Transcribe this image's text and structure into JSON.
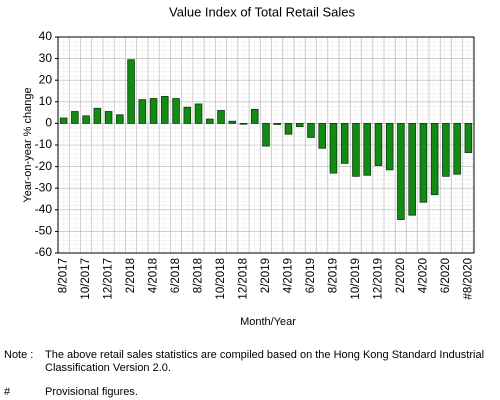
{
  "chart_data": {
    "type": "bar",
    "title": "Value Index of Total Retail Sales",
    "x_label": "Month/Year",
    "y_label": "Year-on-year % change",
    "categories": [
      "8/2017",
      null,
      "10/2017",
      null,
      "12/2017",
      null,
      "2/2018",
      null,
      "4/2018",
      null,
      "6/2018",
      null,
      "8/2018",
      null,
      "10/2018",
      null,
      "12/2018",
      null,
      "2/2019",
      null,
      "4/2019",
      null,
      "6/2019",
      null,
      "8/2019",
      null,
      "10/2019",
      null,
      "12/2019",
      null,
      "2/2020",
      null,
      "4/2020",
      null,
      "6/2020",
      null,
      "#8/2020"
    ],
    "values": [
      2.5,
      5.5,
      3.5,
      7,
      5.5,
      4,
      29.5,
      11,
      11.5,
      12.5,
      11.5,
      7.5,
      9,
      2,
      6,
      1,
      0,
      6.5,
      -10.5,
      -0.5,
      -5,
      -1.5,
      -6.5,
      -11.5,
      -23,
      -18.5,
      -24.5,
      -24,
      -19.5,
      -21.5,
      -44.5,
      -42.5,
      -36.5,
      -33,
      -24.5,
      -23.5,
      -13.5
    ],
    "color": "#138a13",
    "ylim": [
      -60,
      40
    ],
    "yticks": [
      -60,
      -50,
      -40,
      -30,
      -20,
      -10,
      0,
      10,
      20,
      30,
      40
    ],
    "grid": true
  },
  "notes": [
    {
      "marker": "Note :",
      "lines": [
        "The above retail sales statistics are compiled based on the Hong Kong Standard Industrial",
        "Classification Version 2.0."
      ]
    },
    {
      "marker": "#",
      "lines": [
        "Provisional figures."
      ]
    }
  ]
}
